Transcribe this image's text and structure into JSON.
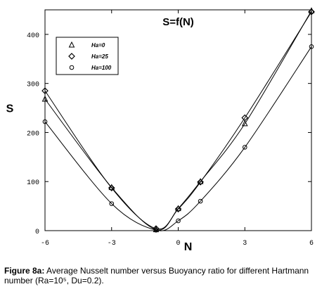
{
  "chart_data": {
    "type": "line",
    "title": "S=f(N)",
    "xlabel": "N",
    "ylabel": "S",
    "xlim": [
      -6,
      6
    ],
    "ylim": [
      0,
      450
    ],
    "x_ticks": [
      -6,
      -3,
      0,
      3,
      6
    ],
    "x_tick_labels": [
      "-6",
      "-3",
      "0",
      "3",
      "6"
    ],
    "y_ticks": [
      0,
      100,
      200,
      300,
      400
    ],
    "y_tick_labels": [
      "0",
      "100",
      "200",
      "300",
      "400"
    ],
    "grid": false,
    "legend_position": "top-left",
    "series": [
      {
        "name": "Ha=0",
        "marker": "triangle",
        "x": [
          -6,
          -3,
          -1,
          0,
          1,
          3,
          6
        ],
        "y": [
          268,
          88,
          2,
          45,
          100,
          218,
          448
        ]
      },
      {
        "name": "Ha=25",
        "marker": "diamond",
        "x": [
          -6,
          -3,
          -1,
          0,
          1,
          3,
          6
        ],
        "y": [
          285,
          87,
          4,
          44,
          99,
          230,
          446
        ]
      },
      {
        "name": "Ha=100",
        "marker": "circle",
        "x": [
          -6,
          -3,
          -1,
          0,
          1,
          3,
          6
        ],
        "y": [
          222,
          55,
          1,
          20,
          60,
          170,
          375
        ]
      }
    ]
  },
  "caption": {
    "label": "Figure 8a:",
    "text": " Average Nusselt number versus Buoyancy ratio for different Hartmann number (Ra=10⁵, Du=0.2)."
  }
}
